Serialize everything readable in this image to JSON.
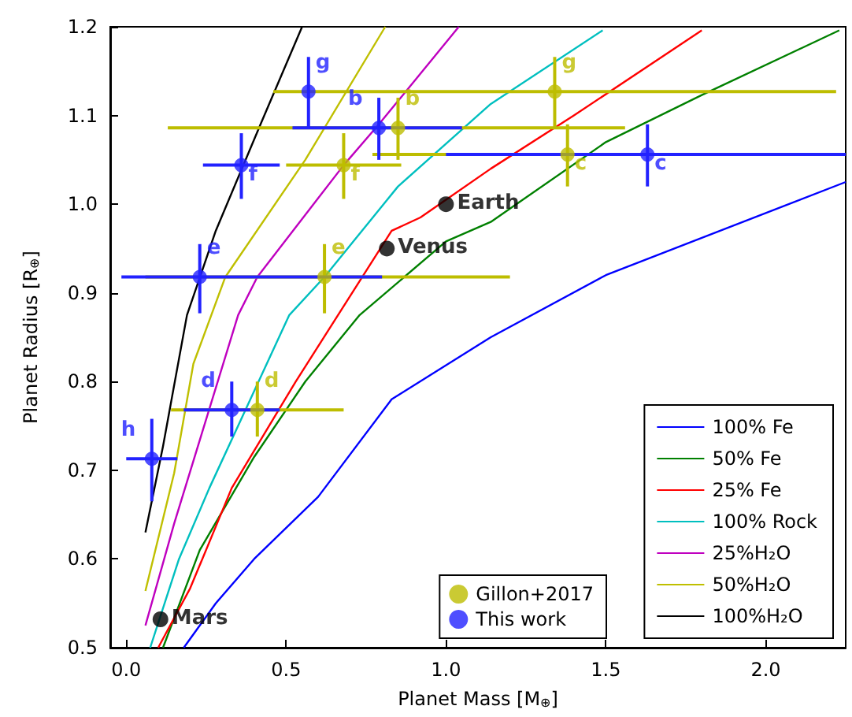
{
  "chart_data": {
    "type": "line",
    "xlabel": "Planet Mass [M$_{⊕}$]",
    "ylabel": "Planet Radius [R$_{⊕}$]",
    "xlim": [
      -0.05,
      2.25
    ],
    "ylim": [
      0.5,
      1.2
    ],
    "xticks": [
      {
        "value": 0,
        "label": "0.0"
      },
      0.5,
      {
        "value": 1,
        "label": "1.0"
      },
      1.5,
      {
        "value": 2,
        "label": "2.0"
      }
    ],
    "yticks": [
      0.5,
      0.6,
      0.7,
      0.8,
      0.9,
      {
        "value": 1,
        "label": "1.0"
      },
      1.1,
      1.2
    ],
    "grid": false,
    "legend": "bottom right",
    "series": [
      {
        "name": "100% Fe",
        "marker": "none",
        "color": "#0000ff",
        "x": [
          0.18,
          0.28,
          0.4,
          0.6,
          0.83,
          1.14,
          1.5,
          2.25
        ],
        "values": [
          0.5,
          0.55,
          0.6,
          0.67,
          0.78,
          0.85,
          0.92,
          1.025
        ]
      },
      {
        "name": "50% Fe",
        "marker": "none",
        "color": "#008000",
        "x": [
          0.115,
          0.23,
          0.4,
          0.56,
          0.73,
          1.0,
          1.14,
          1.5,
          1.8,
          2.23
        ],
        "values": [
          0.5,
          0.61,
          0.715,
          0.8,
          0.875,
          0.958,
          0.98,
          1.07,
          1.123,
          1.196
        ]
      },
      {
        "name": "25% Fe",
        "marker": "none",
        "color": "#ff0000",
        "x": [
          0.1,
          0.2,
          0.33,
          0.53,
          0.83,
          0.92,
          1.14,
          1.4,
          1.8
        ],
        "values": [
          0.5,
          0.567,
          0.68,
          0.8,
          0.97,
          0.985,
          1.04,
          1.1,
          1.196
        ]
      },
      {
        "name": "100% Rock",
        "marker": "none",
        "color": "#00bfbf",
        "x": [
          0.075,
          0.165,
          0.26,
          0.51,
          0.62,
          0.85,
          1.14,
          1.49
        ],
        "values": [
          0.5,
          0.6,
          0.68,
          0.875,
          0.918,
          1.02,
          1.113,
          1.196
        ]
      },
      {
        "name": "25%H₂O",
        "marker": "none",
        "color": "#bf00bf",
        "x": [
          0.06,
          0.15,
          0.35,
          0.41,
          0.68,
          0.79,
          1.04
        ],
        "values": [
          0.525,
          0.64,
          0.875,
          0.918,
          1.044,
          1.09,
          1.2
        ]
      },
      {
        "name": "50%H₂O",
        "marker": "none",
        "color": "#bfbf00",
        "x": [
          0.06,
          0.15,
          0.21,
          0.31,
          0.56,
          0.81
        ],
        "values": [
          0.564,
          0.697,
          0.82,
          0.918,
          1.05,
          1.2
        ]
      },
      {
        "name": "100%H₂O",
        "marker": "none",
        "color": "#000000",
        "x": [
          0.06,
          0.115,
          0.19,
          0.28,
          0.42,
          0.55
        ],
        "values": [
          0.63,
          0.727,
          0.875,
          0.97,
          1.09,
          1.2
        ]
      },
      {
        "name": "Gillon+2017",
        "type": "scatter",
        "marker": "circle",
        "color": "#bdbd00",
        "x": [
          0.85,
          1.38,
          0.41,
          0.62,
          0.68,
          1.34
        ],
        "values": [
          1.086,
          1.056,
          0.768,
          0.918,
          1.044,
          1.127
        ],
        "value_labels": [
          "b",
          "c",
          "d",
          "e",
          "f",
          "g"
        ],
        "xerrors": [
          [
            0.13,
            1.56
          ],
          [
            0.77,
            1.99
          ],
          [
            0.14,
            0.68
          ],
          [
            0.06,
            1.2
          ],
          [
            0.5,
            0.86
          ],
          [
            0.46,
            2.22
          ]
        ],
        "errors": [
          [
            1.05,
            1.12
          ],
          [
            1.02,
            1.09
          ],
          [
            0.738,
            0.8
          ],
          [
            0.877,
            0.955
          ],
          [
            1.006,
            1.08
          ],
          [
            1.086,
            1.166
          ]
        ]
      },
      {
        "name": "This work",
        "type": "scatter",
        "marker": "circle",
        "color": "#2222ff",
        "x": [
          0.79,
          1.63,
          0.33,
          0.23,
          0.36,
          0.57,
          0.08
        ],
        "values": [
          1.086,
          1.056,
          0.768,
          0.918,
          1.044,
          1.127,
          0.713
        ],
        "value_labels": [
          "b",
          "c",
          "d",
          "e",
          "f",
          "g",
          "h"
        ],
        "xerrors": [
          [
            0.52,
            1.05
          ],
          [
            1.0,
            2.25
          ],
          [
            0.18,
            0.48
          ],
          [
            -0.015,
            0.8
          ],
          [
            0.24,
            0.48
          ],
          null,
          [
            0.0,
            0.16
          ]
        ],
        "errors": [
          [
            1.05,
            1.12
          ],
          [
            1.02,
            1.09
          ],
          [
            0.738,
            0.8
          ],
          [
            0.877,
            0.955
          ],
          [
            1.006,
            1.08
          ],
          [
            1.086,
            1.166
          ],
          [
            0.665,
            0.758
          ]
        ]
      },
      {
        "type": "scatter",
        "marker": "circle",
        "color": "#000000",
        "x": [
          1.0,
          0.815,
          0.107
        ],
        "values": [
          1.0,
          0.95,
          0.532
        ],
        "value_labels": [
          "Earth",
          "Venus",
          "Mars"
        ]
      }
    ]
  }
}
